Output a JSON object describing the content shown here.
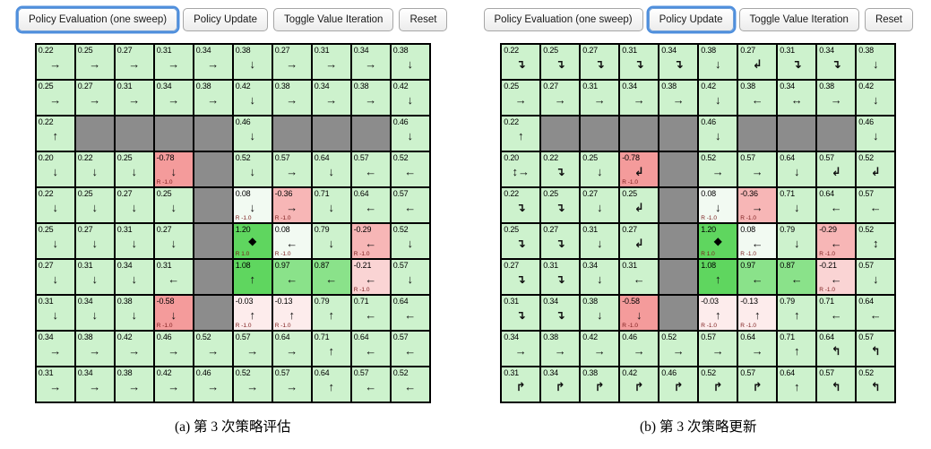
{
  "palette": {
    "wall": "#8c8c8c",
    "green_high": "#5fd65f",
    "green_mid": "#8ae28a",
    "green_light": "#cdf2cd",
    "near_white": "#f2faf2",
    "pink_faint": "#fdecec",
    "pink_light": "#fad4d4",
    "pink_mid": "#f7b6b6",
    "pink_strong": "#f49b9b",
    "active_ring": "#4f8fdd",
    "r_label": "#7a1a1a"
  },
  "panels": [
    {
      "id": "a",
      "caption": "(a) 第 3 次策略评估",
      "buttons": [
        {
          "label": "Policy Evaluation (one sweep)",
          "active": true
        },
        {
          "label": "Policy Update",
          "active": false
        },
        {
          "label": "Toggle Value Iteration",
          "active": false
        },
        {
          "label": "Reset",
          "active": false
        }
      ],
      "grid": {
        "rows": 10,
        "cols": 10,
        "cells": [
          [
            {
              "v": "0.22",
              "a": "→"
            },
            {
              "v": "0.25",
              "a": "→"
            },
            {
              "v": "0.27",
              "a": "→"
            },
            {
              "v": "0.31",
              "a": "→"
            },
            {
              "v": "0.34",
              "a": "→"
            },
            {
              "v": "0.38",
              "a": "↓"
            },
            {
              "v": "0.27",
              "a": "→"
            },
            {
              "v": "0.31",
              "a": "→"
            },
            {
              "v": "0.34",
              "a": "→"
            },
            {
              "v": "0.38",
              "a": "↓"
            }
          ],
          [
            {
              "v": "0.25",
              "a": "→"
            },
            {
              "v": "0.27",
              "a": "→"
            },
            {
              "v": "0.31",
              "a": "→"
            },
            {
              "v": "0.34",
              "a": "→"
            },
            {
              "v": "0.38",
              "a": "→"
            },
            {
              "v": "0.42",
              "a": "↓"
            },
            {
              "v": "0.38",
              "a": "→"
            },
            {
              "v": "0.34",
              "a": "→"
            },
            {
              "v": "0.38",
              "a": "→"
            },
            {
              "v": "0.42",
              "a": "↓"
            }
          ],
          [
            {
              "v": "0.22",
              "a": "↑"
            },
            {
              "wall": true
            },
            {
              "wall": true
            },
            {
              "wall": true
            },
            {
              "wall": true
            },
            {
              "v": "0.46",
              "a": "↓"
            },
            {
              "wall": true
            },
            {
              "wall": true
            },
            {
              "wall": true
            },
            {
              "v": "0.46",
              "a": "↓"
            }
          ],
          [
            {
              "v": "0.20",
              "a": "↓"
            },
            {
              "v": "0.22",
              "a": "↓"
            },
            {
              "v": "0.25",
              "a": "↓"
            },
            {
              "v": "-0.78",
              "a": "↓",
              "r": "R -1.0"
            },
            {
              "wall": true
            },
            {
              "v": "0.52",
              "a": "↓"
            },
            {
              "v": "0.57",
              "a": "→"
            },
            {
              "v": "0.64",
              "a": "↓"
            },
            {
              "v": "0.57",
              "a": "←"
            },
            {
              "v": "0.52",
              "a": "←"
            }
          ],
          [
            {
              "v": "0.22",
              "a": "↓"
            },
            {
              "v": "0.25",
              "a": "↓"
            },
            {
              "v": "0.27",
              "a": "↓"
            },
            {
              "v": "0.25",
              "a": "↓"
            },
            {
              "wall": true
            },
            {
              "v": "0.08",
              "a": "↓",
              "r": "R -1.0"
            },
            {
              "v": "-0.36",
              "a": "→",
              "r": "R -1.0"
            },
            {
              "v": "0.71",
              "a": "↓"
            },
            {
              "v": "0.64",
              "a": "←"
            },
            {
              "v": "0.57",
              "a": "←"
            }
          ],
          [
            {
              "v": "0.25",
              "a": "↓"
            },
            {
              "v": "0.27",
              "a": "↓"
            },
            {
              "v": "0.31",
              "a": "↓"
            },
            {
              "v": "0.27",
              "a": "↓"
            },
            {
              "wall": true
            },
            {
              "v": "1.20",
              "star": "◆",
              "r": "R 1.0"
            },
            {
              "v": "0.08",
              "a": "←",
              "r": "R -1.0"
            },
            {
              "v": "0.79",
              "a": "↓"
            },
            {
              "v": "-0.29",
              "a": "←",
              "r": "R -1.0"
            },
            {
              "v": "0.52",
              "a": "↓"
            }
          ],
          [
            {
              "v": "0.27",
              "a": "↓"
            },
            {
              "v": "0.31",
              "a": "↓"
            },
            {
              "v": "0.34",
              "a": "↓"
            },
            {
              "v": "0.31",
              "a": "←"
            },
            {
              "wall": true
            },
            {
              "v": "1.08",
              "a": "↑"
            },
            {
              "v": "0.97",
              "a": "←"
            },
            {
              "v": "0.87",
              "a": "←"
            },
            {
              "v": "-0.21",
              "a": "←",
              "r": "R -1.0"
            },
            {
              "v": "0.57",
              "a": "↓"
            }
          ],
          [
            {
              "v": "0.31",
              "a": "↓"
            },
            {
              "v": "0.34",
              "a": "↓"
            },
            {
              "v": "0.38",
              "a": "↓"
            },
            {
              "v": "-0.58",
              "a": "↓",
              "r": "R -1.0"
            },
            {
              "wall": true
            },
            {
              "v": "-0.03",
              "a": "↑",
              "r": "R -1.0"
            },
            {
              "v": "-0.13",
              "a": "↑",
              "r": "R -1.0"
            },
            {
              "v": "0.79",
              "a": "↑"
            },
            {
              "v": "0.71",
              "a": "←"
            },
            {
              "v": "0.64",
              "a": "←"
            }
          ],
          [
            {
              "v": "0.34",
              "a": "→"
            },
            {
              "v": "0.38",
              "a": "→"
            },
            {
              "v": "0.42",
              "a": "→"
            },
            {
              "v": "0.46",
              "a": "→"
            },
            {
              "v": "0.52",
              "a": "→"
            },
            {
              "v": "0.57",
              "a": "→"
            },
            {
              "v": "0.64",
              "a": "→"
            },
            {
              "v": "0.71",
              "a": "↑"
            },
            {
              "v": "0.64",
              "a": "←"
            },
            {
              "v": "0.57",
              "a": "←"
            }
          ],
          [
            {
              "v": "0.31",
              "a": "→"
            },
            {
              "v": "0.34",
              "a": "→"
            },
            {
              "v": "0.38",
              "a": "→"
            },
            {
              "v": "0.42",
              "a": "→"
            },
            {
              "v": "0.46",
              "a": "→"
            },
            {
              "v": "0.52",
              "a": "→"
            },
            {
              "v": "0.57",
              "a": "→"
            },
            {
              "v": "0.64",
              "a": "↑"
            },
            {
              "v": "0.57",
              "a": "←"
            },
            {
              "v": "0.52",
              "a": "←"
            }
          ]
        ]
      }
    },
    {
      "id": "b",
      "caption": "(b) 第 3 次策略更新",
      "buttons": [
        {
          "label": "Policy Evaluation (one sweep)",
          "active": false
        },
        {
          "label": "Policy Update",
          "active": true
        },
        {
          "label": "Toggle Value Iteration",
          "active": false
        },
        {
          "label": "Reset",
          "active": false
        }
      ],
      "grid": {
        "rows": 10,
        "cols": 10,
        "cells": [
          [
            {
              "v": "0.22",
              "a": "↴"
            },
            {
              "v": "0.25",
              "a": "↴"
            },
            {
              "v": "0.27",
              "a": "↴"
            },
            {
              "v": "0.31",
              "a": "↴"
            },
            {
              "v": "0.34",
              "a": "↴"
            },
            {
              "v": "0.38",
              "a": "↓"
            },
            {
              "v": "0.27",
              "a": "↲"
            },
            {
              "v": "0.31",
              "a": "↴"
            },
            {
              "v": "0.34",
              "a": "↴"
            },
            {
              "v": "0.38",
              "a": "↓"
            }
          ],
          [
            {
              "v": "0.25",
              "a": "→"
            },
            {
              "v": "0.27",
              "a": "→"
            },
            {
              "v": "0.31",
              "a": "→"
            },
            {
              "v": "0.34",
              "a": "→"
            },
            {
              "v": "0.38",
              "a": "→"
            },
            {
              "v": "0.42",
              "a": "↓"
            },
            {
              "v": "0.38",
              "a": "←"
            },
            {
              "v": "0.34",
              "a": "↔"
            },
            {
              "v": "0.38",
              "a": "→"
            },
            {
              "v": "0.42",
              "a": "↓"
            }
          ],
          [
            {
              "v": "0.22",
              "a": "↑"
            },
            {
              "wall": true
            },
            {
              "wall": true
            },
            {
              "wall": true
            },
            {
              "wall": true
            },
            {
              "v": "0.46",
              "a": "↓"
            },
            {
              "wall": true
            },
            {
              "wall": true
            },
            {
              "wall": true
            },
            {
              "v": "0.46",
              "a": "↓"
            }
          ],
          [
            {
              "v": "0.20",
              "a": "↕→"
            },
            {
              "v": "0.22",
              "a": "↴"
            },
            {
              "v": "0.25",
              "a": "↓"
            },
            {
              "v": "-0.78",
              "a": "↲",
              "r": "R -1.0"
            },
            {
              "wall": true
            },
            {
              "v": "0.52",
              "a": "→"
            },
            {
              "v": "0.57",
              "a": "→"
            },
            {
              "v": "0.64",
              "a": "↓"
            },
            {
              "v": "0.57",
              "a": "↲"
            },
            {
              "v": "0.52",
              "a": "↲"
            }
          ],
          [
            {
              "v": "0.22",
              "a": "↴"
            },
            {
              "v": "0.25",
              "a": "↴"
            },
            {
              "v": "0.27",
              "a": "↓"
            },
            {
              "v": "0.25",
              "a": "↲"
            },
            {
              "wall": true
            },
            {
              "v": "0.08",
              "a": "↓",
              "r": "R -1.0"
            },
            {
              "v": "-0.36",
              "a": "→",
              "r": "R -1.0"
            },
            {
              "v": "0.71",
              "a": "↓"
            },
            {
              "v": "0.64",
              "a": "←"
            },
            {
              "v": "0.57",
              "a": "←"
            }
          ],
          [
            {
              "v": "0.25",
              "a": "↴"
            },
            {
              "v": "0.27",
              "a": "↴"
            },
            {
              "v": "0.31",
              "a": "↓"
            },
            {
              "v": "0.27",
              "a": "↲"
            },
            {
              "wall": true
            },
            {
              "v": "1.20",
              "star": "◆",
              "r": "R 1.0"
            },
            {
              "v": "0.08",
              "a": "←",
              "r": "R -1.0"
            },
            {
              "v": "0.79",
              "a": "↓"
            },
            {
              "v": "-0.29",
              "a": "←",
              "r": "R -1.0"
            },
            {
              "v": "0.52",
              "a": "↕"
            }
          ],
          [
            {
              "v": "0.27",
              "a": "↴"
            },
            {
              "v": "0.31",
              "a": "↴"
            },
            {
              "v": "0.34",
              "a": "↓"
            },
            {
              "v": "0.31",
              "a": "←"
            },
            {
              "wall": true
            },
            {
              "v": "1.08",
              "a": "↑"
            },
            {
              "v": "0.97",
              "a": "←"
            },
            {
              "v": "0.87",
              "a": "←"
            },
            {
              "v": "-0.21",
              "a": "←",
              "r": "R -1.0"
            },
            {
              "v": "0.57",
              "a": "↓"
            }
          ],
          [
            {
              "v": "0.31",
              "a": "↴"
            },
            {
              "v": "0.34",
              "a": "↴"
            },
            {
              "v": "0.38",
              "a": "↓"
            },
            {
              "v": "-0.58",
              "a": "↓",
              "r": "R -1.0"
            },
            {
              "wall": true
            },
            {
              "v": "-0.03",
              "a": "↑",
              "r": "R -1.0"
            },
            {
              "v": "-0.13",
              "a": "↑",
              "r": "R -1.0"
            },
            {
              "v": "0.79",
              "a": "↑"
            },
            {
              "v": "0.71",
              "a": "←"
            },
            {
              "v": "0.64",
              "a": "←"
            }
          ],
          [
            {
              "v": "0.34",
              "a": "→"
            },
            {
              "v": "0.38",
              "a": "→"
            },
            {
              "v": "0.42",
              "a": "→"
            },
            {
              "v": "0.46",
              "a": "→"
            },
            {
              "v": "0.52",
              "a": "→"
            },
            {
              "v": "0.57",
              "a": "→"
            },
            {
              "v": "0.64",
              "a": "→"
            },
            {
              "v": "0.71",
              "a": "↑"
            },
            {
              "v": "0.64",
              "a": "↰"
            },
            {
              "v": "0.57",
              "a": "↰"
            }
          ],
          [
            {
              "v": "0.31",
              "a": "↱"
            },
            {
              "v": "0.34",
              "a": "↱"
            },
            {
              "v": "0.38",
              "a": "↱"
            },
            {
              "v": "0.42",
              "a": "↱"
            },
            {
              "v": "0.46",
              "a": "↱"
            },
            {
              "v": "0.52",
              "a": "↱"
            },
            {
              "v": "0.57",
              "a": "↱"
            },
            {
              "v": "0.64",
              "a": "↑"
            },
            {
              "v": "0.57",
              "a": "↰"
            },
            {
              "v": "0.52",
              "a": "↰"
            }
          ]
        ]
      }
    }
  ]
}
